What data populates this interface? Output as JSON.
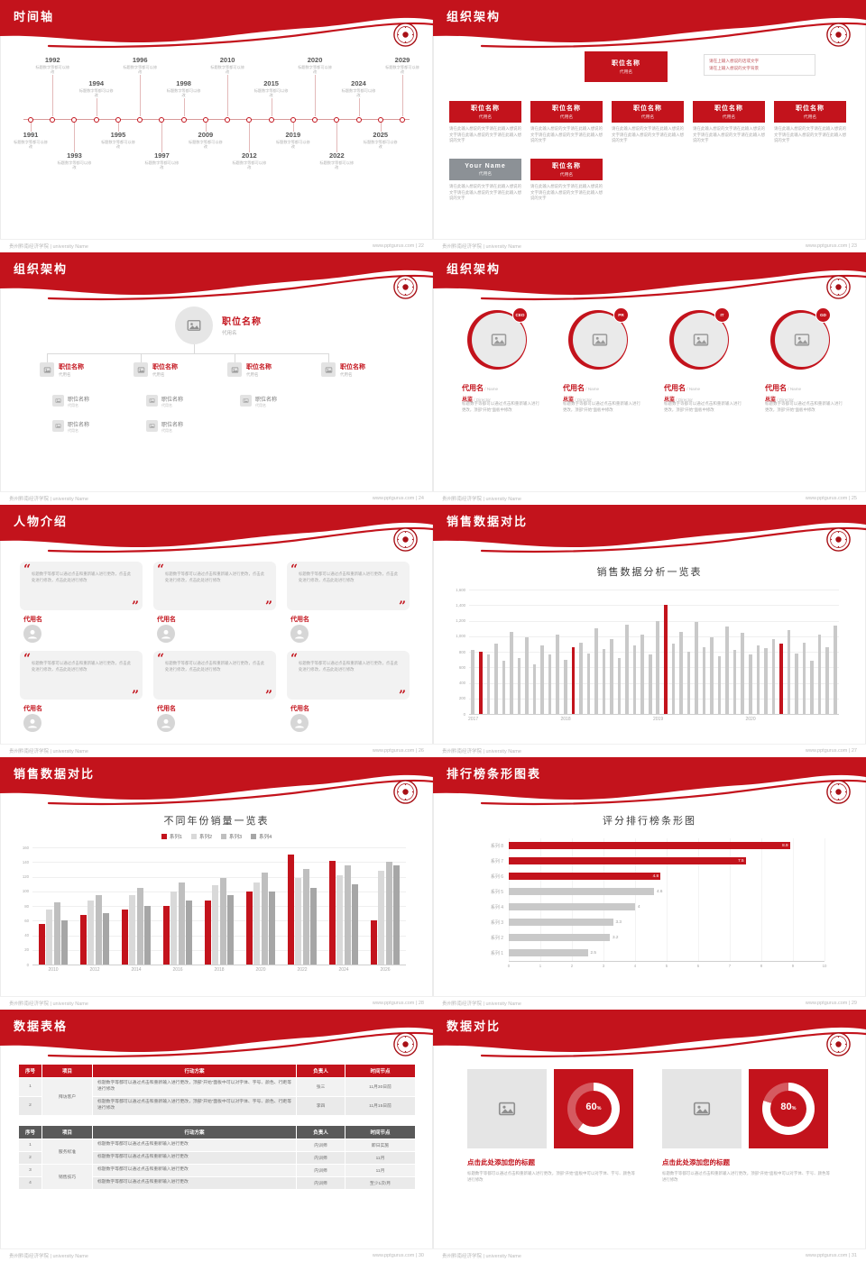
{
  "footer": {
    "left": "贵州黔南经济学院 | university Name",
    "site": "www.pptgurus.com",
    "sep": " | "
  },
  "slides": {
    "timeline": {
      "title": "时间轴",
      "page": "22",
      "note": "标题数字等都可以修改",
      "years": [
        {
          "year": "1991",
          "side": "bottom",
          "level": 0
        },
        {
          "year": "1992",
          "side": "top",
          "level": 0
        },
        {
          "year": "1993",
          "side": "bottom",
          "level": 1
        },
        {
          "year": "1994",
          "side": "top",
          "level": 1
        },
        {
          "year": "1995",
          "side": "bottom",
          "level": 0
        },
        {
          "year": "1996",
          "side": "top",
          "level": 0
        },
        {
          "year": "1997",
          "side": "bottom",
          "level": 1
        },
        {
          "year": "1998",
          "side": "top",
          "level": 1
        },
        {
          "year": "2009",
          "side": "bottom",
          "level": 0
        },
        {
          "year": "2010",
          "side": "top",
          "level": 0
        },
        {
          "year": "2012",
          "side": "bottom",
          "level": 1
        },
        {
          "year": "2015",
          "side": "top",
          "level": 1
        },
        {
          "year": "2019",
          "side": "bottom",
          "level": 0
        },
        {
          "year": "2020",
          "side": "top",
          "level": 0
        },
        {
          "year": "2022",
          "side": "bottom",
          "level": 1
        },
        {
          "year": "2024",
          "side": "top",
          "level": 1
        },
        {
          "year": "2025",
          "side": "bottom",
          "level": 0
        },
        {
          "year": "2029",
          "side": "top",
          "level": 0
        }
      ]
    },
    "org1": {
      "title": "组织架构",
      "page": "23",
      "top_box": {
        "title": "职位名称",
        "sub": "代用名"
      },
      "note_l1": "请在上输入想说的话或文字",
      "note_l2": "请在上输入想说的文字背景",
      "para": "请在此输入想说的文字请在此输入想说的文字请在此输入想说的文字请在此输入想说的文字",
      "boxes": [
        {
          "title": "职位名称",
          "sub": "代用名"
        },
        {
          "title": "职位名称",
          "sub": "代用名"
        },
        {
          "title": "职位名称",
          "sub": "代用名"
        },
        {
          "title": "职位名称",
          "sub": "代用名"
        },
        {
          "title": "职位名称",
          "sub": "代用名"
        }
      ],
      "row2": [
        {
          "title": "Your Name",
          "sub": "代用名",
          "variant": "gray"
        },
        {
          "title": "职位名称",
          "sub": "代用名",
          "variant": "red"
        }
      ]
    },
    "org2": {
      "title": "组织架构",
      "page": "24",
      "root": {
        "title": "职位名称",
        "sub": "代用名"
      },
      "branches": [
        {
          "title": "职位名称",
          "sub": "代用名",
          "subs": 2
        },
        {
          "title": "职位名称",
          "sub": "代用名",
          "subs": 2
        },
        {
          "title": "职位名称",
          "sub": "代用名",
          "subs": 1
        },
        {
          "title": "职位名称",
          "sub": "代用名",
          "subs": 0
        }
      ],
      "sub_title": "职位名称",
      "sub_note": "代用名"
    },
    "org3": {
      "title": "组织架构",
      "page": "25",
      "name": "代用名",
      "name_en": "/ Name",
      "role": "总监",
      "role_en": "/ Director",
      "para": "标题数字等都可以通过点击和重新输入进行更改，顶部“开始”面板中修改",
      "profiles": [
        {
          "badge": "CEO"
        },
        {
          "badge": "PR"
        },
        {
          "badge": "IT"
        },
        {
          "badge": "GD"
        }
      ]
    },
    "people": {
      "title": "人物介绍",
      "page": "26",
      "quote": "标题数字等都可以通过点击和重新输入进行更改，点击此处进行修改，点击此处进行修改",
      "quote_open": "“",
      "quote_close": "”",
      "name": "代用名",
      "cards": 6
    },
    "chartA": {
      "title": "销售数据对比",
      "page": "27"
    },
    "chartB": {
      "title": "销售数据对比",
      "page": "28"
    },
    "chartC": {
      "title": "排行榜条形图表",
      "page": "29"
    },
    "tables": {
      "title": "数据表格",
      "page": "30",
      "table1": {
        "headers": [
          "序号",
          "项目",
          "行动方案",
          "负责人",
          "时间节点"
        ],
        "project": "拜访客户",
        "rows": [
          {
            "no": "1",
            "plan": "标题数字等都可以通过点击和重新输入进行更改，顶部“开始”面板中可以对字体、字号、颜色、行距等进行修改",
            "owner": "张三",
            "time": "11月30日前"
          },
          {
            "no": "2",
            "plan": "标题数字等都可以通过点击和重新输入进行更改，顶部“开始”面板中可以对字体、字号、颜色、行距等进行修改",
            "owner": "李四",
            "time": "11月15日前"
          }
        ]
      },
      "table2": {
        "headers": [
          "序号",
          "项目",
          "行动方案",
          "负责人",
          "时间节点"
        ],
        "projects": [
          "服务标准",
          "销售技巧"
        ],
        "rows": [
          {
            "no": "1",
            "plan": "标题数字等都可以通过点击和重新输入进行更改",
            "owner": "内训师",
            "time": "即日实施"
          },
          {
            "no": "2",
            "plan": "标题数字等都可以通过点击和重新输入进行更改",
            "owner": "内训师",
            "time": "11月"
          },
          {
            "no": "3",
            "plan": "标题数字等都可以通过点击和重新输入进行更改",
            "owner": "内训师",
            "time": "11月"
          },
          {
            "no": "4",
            "plan": "标题数字等都可以通过点击和重新输入进行更改",
            "owner": "内训师",
            "time": "至少1次/月"
          }
        ]
      }
    },
    "compare": {
      "title": "数据对比",
      "page": "31",
      "cards": [
        {
          "title": "点击此处添加您的标题",
          "para": "标题数字等都可以通过点击和重新输入进行更改，顶部“开始”面板中可以对字体、字号、颜色等进行修改"
        },
        {
          "title": "点击此处添加您的标题",
          "para": "标题数字等都可以通过点击和重新输入进行更改，顶部“开始”面板中可以对字体、字号、颜色等进行修改"
        }
      ]
    }
  },
  "chart_data": [
    {
      "type": "bar",
      "title": "销售数据分析一览表",
      "x_ticks": [
        "2017",
        "2018",
        "2019",
        "2020"
      ],
      "ylim": [
        0,
        1600
      ],
      "ytick_step": 200,
      "bar_color": "#c9c9c9",
      "accent_color": "#c3131c",
      "red_indices": [
        1,
        13,
        25,
        40
      ],
      "values": [
        820,
        800,
        760,
        900,
        680,
        1050,
        720,
        980,
        640,
        880,
        760,
        1020,
        700,
        860,
        920,
        780,
        1100,
        840,
        960,
        720,
        1150,
        880,
        1020,
        760,
        1200,
        1400,
        900,
        1060,
        800,
        1180,
        860,
        980,
        740,
        1120,
        820,
        1040,
        760,
        880,
        850,
        960,
        900,
        1080,
        780,
        920,
        680,
        1020,
        860,
        1140
      ]
    },
    {
      "type": "bar",
      "title": "不同年份销量一览表",
      "categories": [
        "2010",
        "2012",
        "2014",
        "2016",
        "2018",
        "2020",
        "2022",
        "2024",
        "2026"
      ],
      "ylim": [
        0,
        160
      ],
      "ytick_step": 20,
      "legend_position": "top",
      "series": [
        {
          "name": "系列1",
          "color": "#c3131c",
          "values": [
            55,
            68,
            75,
            80,
            88,
            100,
            150,
            142,
            60
          ]
        },
        {
          "name": "系列2",
          "color": "#d9d9d9",
          "values": [
            75,
            88,
            95,
            100,
            108,
            112,
            118,
            122,
            128
          ]
        },
        {
          "name": "系列3",
          "color": "#bfbfbf",
          "values": [
            85,
            95,
            105,
            112,
            118,
            125,
            130,
            135,
            140
          ]
        },
        {
          "name": "系列4",
          "color": "#a6a6a6",
          "values": [
            60,
            70,
            80,
            88,
            95,
            100,
            105,
            110,
            135
          ]
        }
      ]
    },
    {
      "type": "bar",
      "orientation": "horizontal",
      "title": "评分排行榜条形图",
      "categories": [
        "系列 8",
        "系列 7",
        "系列 6",
        "系列 5",
        "系列 4",
        "系列 3",
        "系列 2",
        "系列 1"
      ],
      "values": [
        8.9,
        7.5,
        4.8,
        4.6,
        4,
        3.3,
        3.2,
        2.5
      ],
      "colors_red_count": 3,
      "xlim": [
        0,
        10
      ],
      "xticks": [
        0,
        1,
        2,
        3,
        4,
        5,
        6,
        7,
        8,
        9,
        10
      ]
    },
    {
      "type": "donut",
      "items": [
        {
          "label": "60%",
          "value": 60
        },
        {
          "label": "80%",
          "value": 80
        }
      ]
    }
  ]
}
